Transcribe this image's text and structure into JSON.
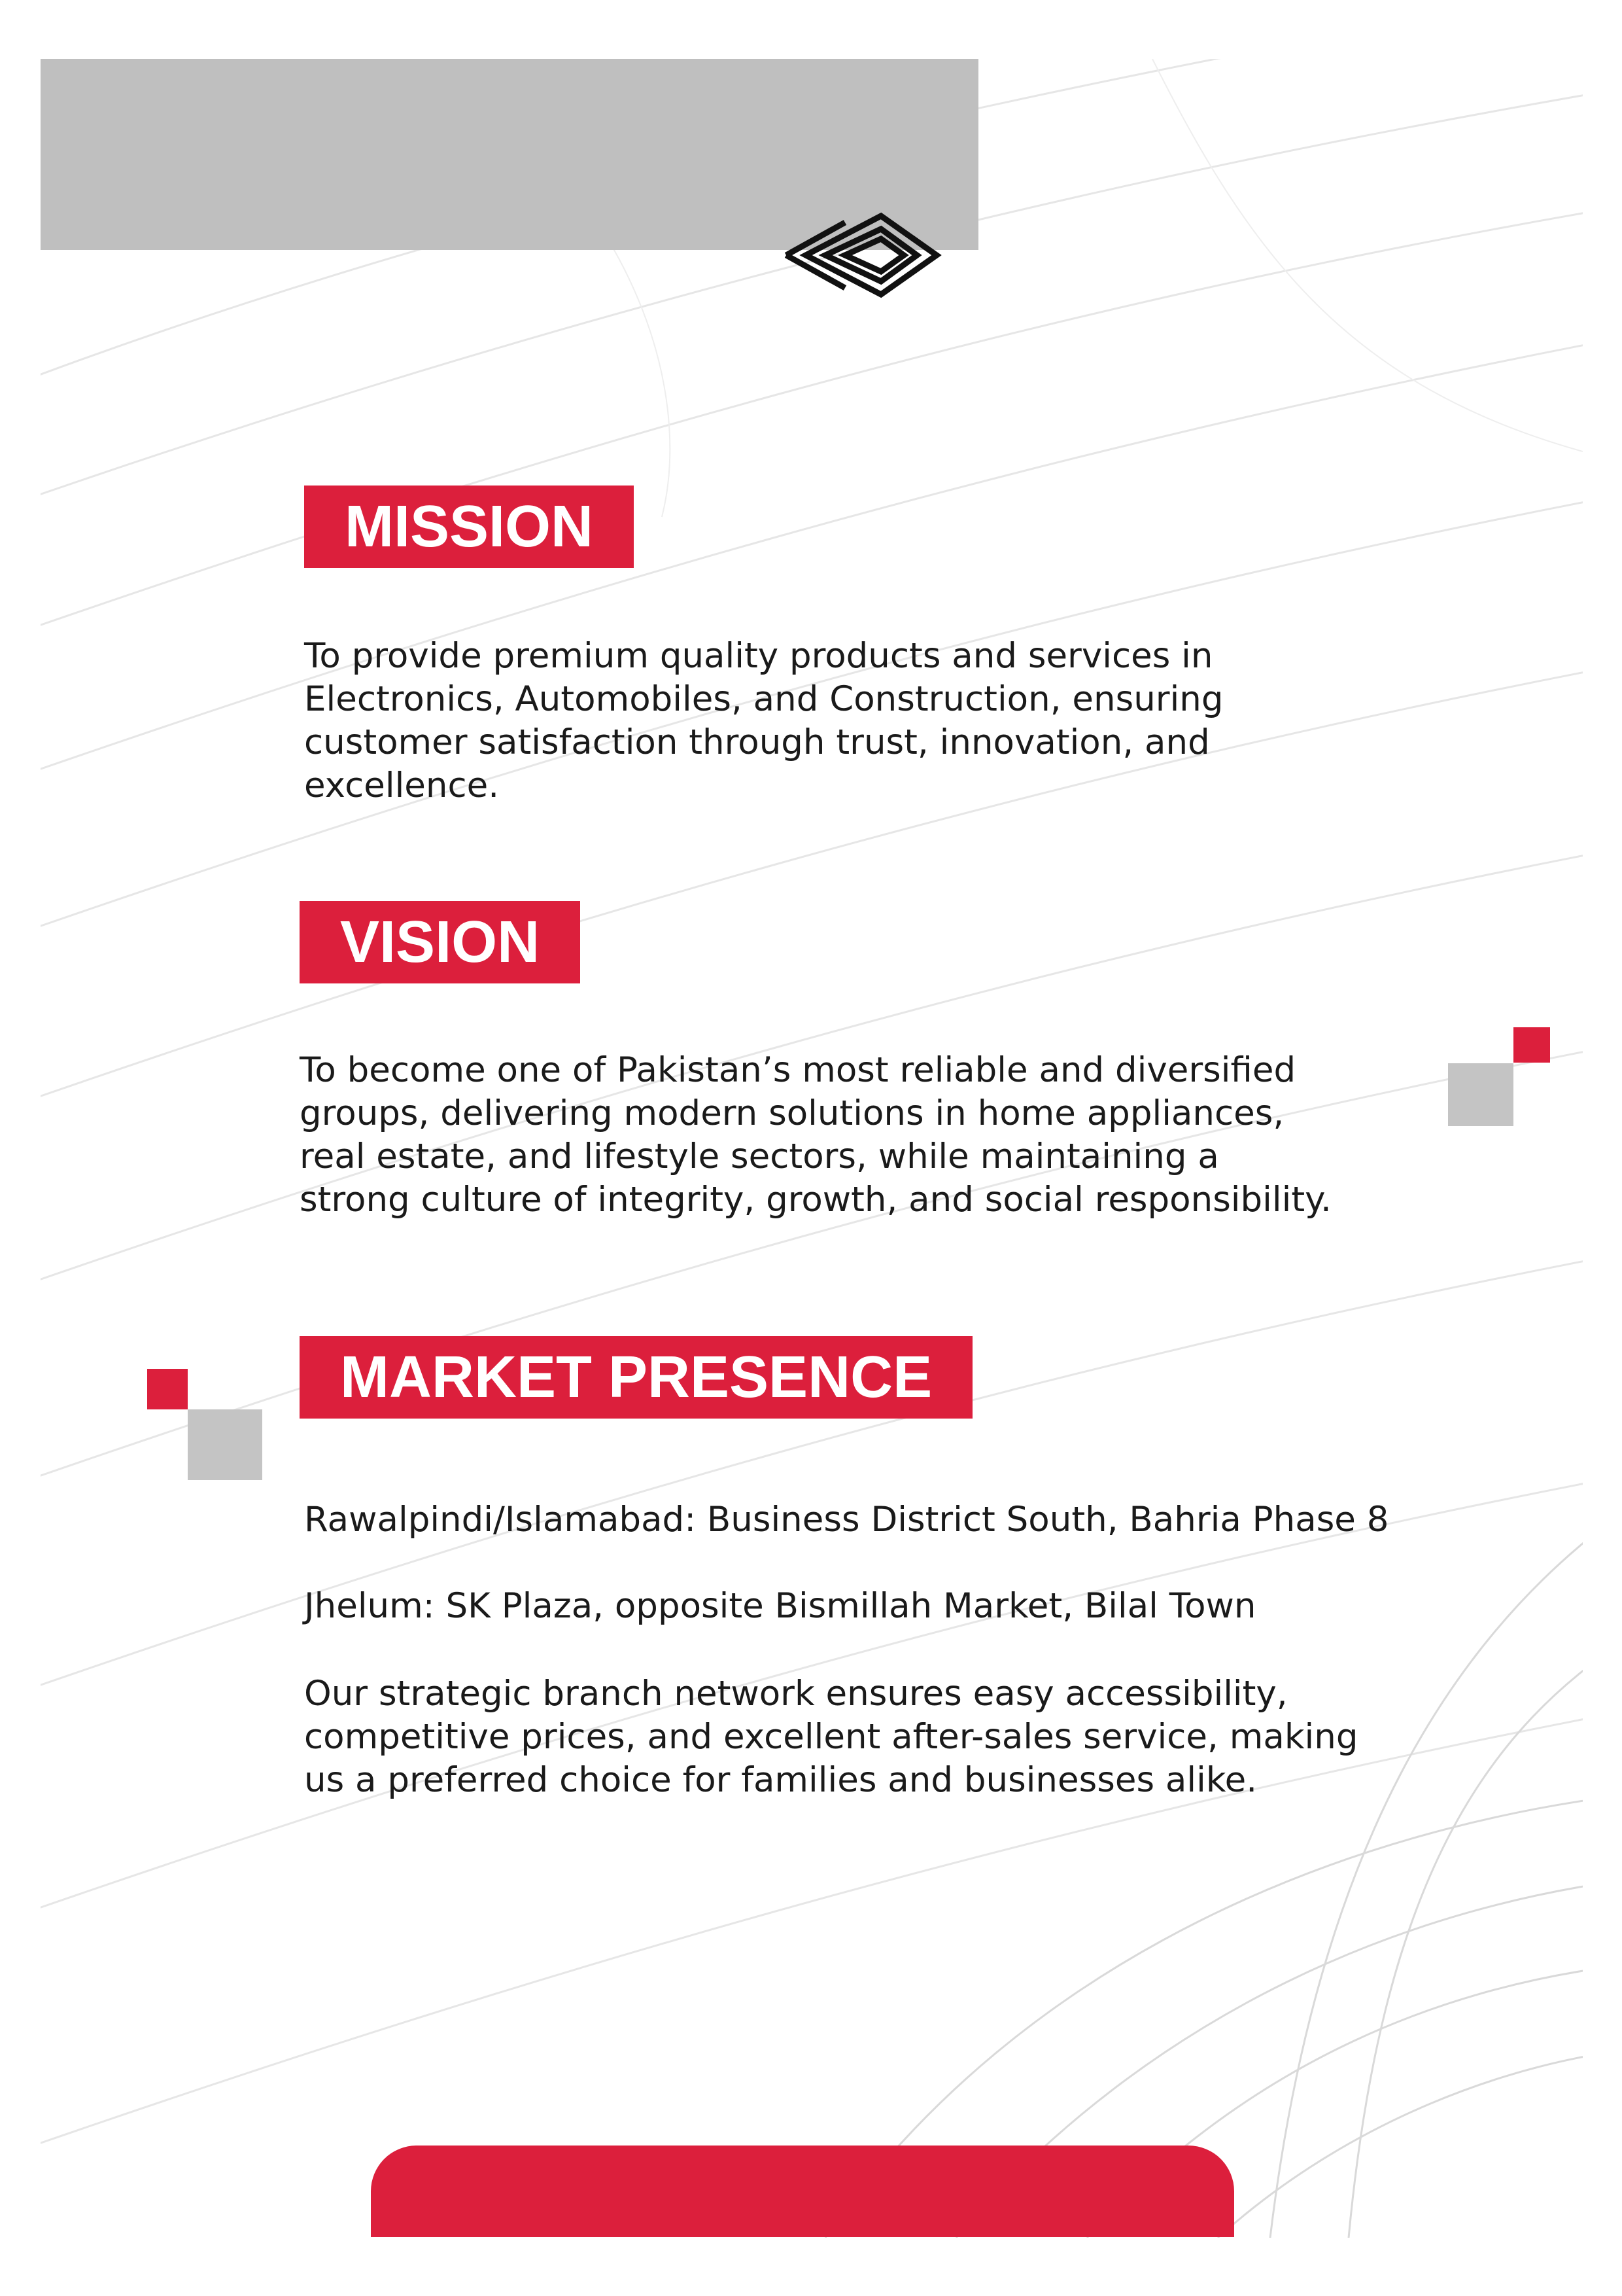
{
  "colors": {
    "accent": "#dc1f3c",
    "header_band": "#bfbfbf",
    "square_grey": "#c4c4c4",
    "text": "#1a1a1a"
  },
  "logo": {
    "icon": "nested-diamonds-logo-icon"
  },
  "mission": {
    "heading": "MISSION",
    "lines": [
      "To provide premium quality products and services in",
      "Electronics, Automobiles, and Construction, ensuring",
      "customer satisfaction through trust, innovation, and",
      "excellence."
    ]
  },
  "vision": {
    "heading": "VISION",
    "lines": [
      "To become one of Pakistan’s most reliable and diversified",
      "groups, delivering modern solutions in home appliances,",
      "real estate, and lifestyle sectors, while maintaining a",
      "strong culture of integrity, growth, and social responsibility."
    ]
  },
  "market_presence": {
    "heading": "MARKET PRESENCE",
    "location_1": "Rawalpindi/Islamabad: Business District South, Bahria Phase 8",
    "location_2": "Jhelum: SK Plaza, opposite Bismillah Market, Bilal Town",
    "lines": [
      "Our strategic branch network ensures easy accessibility,",
      "competitive prices, and excellent after-sales service, making",
      "us a preferred choice for families and businesses alike."
    ]
  }
}
